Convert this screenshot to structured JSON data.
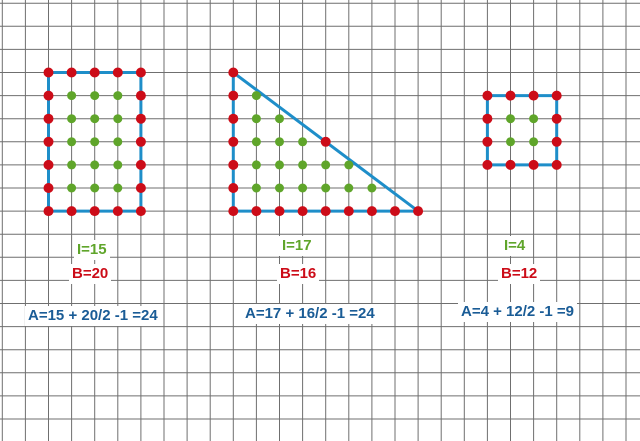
{
  "colors": {
    "background": "#ffffff",
    "grid_line": "#6f6f6f",
    "outline": "#1e8ec9",
    "boundary_point": "#cc0c18",
    "interior_point": "#5fa52a",
    "interior_label": "#5fa52a",
    "boundary_label": "#cc0c18",
    "formula_label": "#1a5c96"
  },
  "figures": [
    {
      "shape": "rectangle",
      "interior_label": "I=15",
      "boundary_label": "B=20",
      "formula": "A=15 + 20/2 -1 =24"
    },
    {
      "shape": "right-triangle",
      "interior_label": "I=17",
      "boundary_label": "B=16",
      "formula": "A=17 + 16/2 -1 =24"
    },
    {
      "shape": "square",
      "interior_label": "I=4",
      "boundary_label": "B=12",
      "formula": "A=4 + 12/2 -1 =9"
    }
  ]
}
